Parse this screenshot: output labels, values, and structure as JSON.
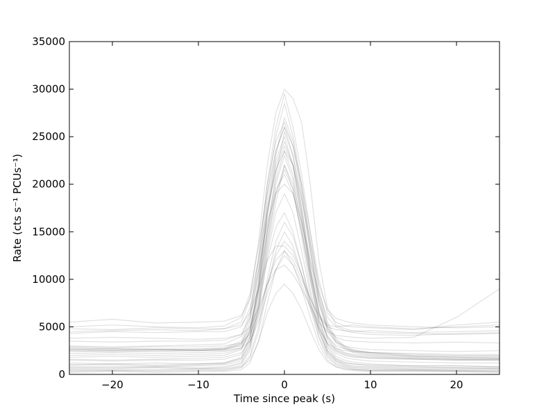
{
  "chart_data": {
    "type": "line",
    "title": "",
    "xlabel": "Time since peak (s)",
    "ylabel": "Rate (cts s⁻¹ PCUs⁻¹)",
    "xlim": [
      -25,
      25
    ],
    "ylim": [
      0,
      35000
    ],
    "xticks": [
      -20,
      -10,
      0,
      10,
      20
    ],
    "xtick_labels": [
      "−20",
      "−10",
      "0",
      "10",
      "20"
    ],
    "yticks": [
      0,
      5000,
      10000,
      15000,
      20000,
      25000,
      30000,
      35000
    ],
    "ytick_labels": [
      "0",
      "5000",
      "10000",
      "15000",
      "20000",
      "25000",
      "30000",
      "35000"
    ],
    "grid": false,
    "legend": "none",
    "line_color": "#000000",
    "line_alpha": 0.12,
    "description": "Overlaid light-curve profiles aligned at their peak (time 0).",
    "x": [
      -25,
      -20,
      -15,
      -10,
      -7,
      -5,
      -4,
      -3,
      -2,
      -1,
      0,
      1,
      2,
      3,
      4,
      5,
      6,
      7,
      8,
      10,
      15,
      20,
      25
    ],
    "series": [
      {
        "values": [
          2700,
          2600,
          2600,
          2700,
          2800,
          3500,
          6000,
          12000,
          20000,
          26000,
          29500,
          26000,
          21000,
          15000,
          9000,
          5500,
          3800,
          3000,
          2600,
          2300,
          2000,
          1900,
          1900
        ]
      },
      {
        "values": [
          2500,
          2400,
          2500,
          2500,
          2600,
          3200,
          5500,
          11000,
          19000,
          25000,
          28500,
          25000,
          20000,
          14000,
          8500,
          5200,
          3600,
          2900,
          2500,
          2200,
          1900,
          1800,
          1800
        ]
      },
      {
        "values": [
          2800,
          2700,
          2700,
          2600,
          2700,
          3300,
          5000,
          9500,
          17000,
          23000,
          27000,
          24500,
          19500,
          13500,
          8000,
          5000,
          3500,
          2800,
          2400,
          2100,
          1900,
          1800,
          1700
        ]
      },
      {
        "values": [
          2600,
          2500,
          2600,
          2500,
          2600,
          3000,
          4500,
          8500,
          15000,
          21000,
          25500,
          23000,
          18500,
          13000,
          8000,
          4800,
          3300,
          2700,
          2300,
          2000,
          1800,
          1700,
          1700
        ]
      },
      {
        "values": [
          4500,
          4600,
          4700,
          4600,
          4800,
          5500,
          8000,
          14000,
          22000,
          27500,
          30000,
          29000,
          26500,
          20000,
          12000,
          7000,
          5200,
          4800,
          4600,
          4400,
          4300,
          4200,
          4300
        ]
      },
      {
        "values": [
          4300,
          4500,
          4400,
          4500,
          4500,
          5000,
          7000,
          11000,
          16000,
          19000,
          20000,
          19000,
          16000,
          12000,
          8500,
          6000,
          5000,
          4600,
          4400,
          4200,
          4100,
          4300,
          4400
        ]
      },
      {
        "values": [
          5000,
          5200,
          5000,
          4900,
          5100,
          6000,
          8500,
          13500,
          19000,
          23500,
          26000,
          24000,
          20000,
          15000,
          10000,
          6500,
          5500,
          5100,
          5000,
          4900,
          4700,
          5200,
          5500
        ]
      },
      {
        "values": [
          4800,
          4700,
          4900,
          4800,
          4800,
          5200,
          6500,
          9000,
          12000,
          13500,
          13500,
          12500,
          10500,
          8000,
          6000,
          5000,
          4700,
          4600,
          4500,
          4600,
          4400,
          4500,
          4600
        ]
      },
      {
        "values": [
          3000,
          2900,
          3000,
          3100,
          3200,
          4000,
          6500,
          12500,
          20000,
          24500,
          26500,
          24000,
          19000,
          13000,
          7500,
          4500,
          3400,
          3000,
          2800,
          2600,
          2500,
          2400,
          2500
        ]
      },
      {
        "values": [
          2200,
          2300,
          2200,
          2300,
          2400,
          2800,
          4000,
          7500,
          13000,
          18000,
          22000,
          20000,
          16000,
          11000,
          6500,
          4000,
          2800,
          2300,
          2100,
          1900,
          1700,
          1600,
          1600
        ]
      },
      {
        "values": [
          1000,
          1000,
          900,
          1000,
          1100,
          1600,
          3500,
          9000,
          17000,
          22500,
          25000,
          22000,
          16500,
          10500,
          5500,
          2800,
          1700,
          1300,
          1100,
          900,
          800,
          700,
          700
        ]
      },
      {
        "values": [
          800,
          800,
          800,
          900,
          1000,
          1400,
          3000,
          7500,
          14500,
          20000,
          23000,
          20500,
          15500,
          10000,
          5200,
          2500,
          1500,
          1100,
          900,
          800,
          700,
          700,
          600
        ]
      },
      {
        "values": [
          1200,
          1100,
          1200,
          1100,
          1200,
          1800,
          4000,
          10000,
          18000,
          23500,
          26000,
          23000,
          17500,
          11000,
          6000,
          3000,
          1900,
          1500,
          1300,
          1100,
          900,
          900,
          800
        ]
      },
      {
        "values": [
          600,
          600,
          700,
          600,
          700,
          1100,
          2500,
          6500,
          12500,
          17000,
          19000,
          17000,
          13000,
          8500,
          4500,
          2200,
          1300,
          900,
          700,
          600,
          500,
          500,
          500
        ]
      },
      {
        "values": [
          500,
          500,
          500,
          600,
          600,
          900,
          2000,
          5000,
          10000,
          14000,
          16000,
          14500,
          11500,
          7500,
          4000,
          2000,
          1100,
          800,
          600,
          500,
          500,
          400,
          400
        ]
      },
      {
        "values": [
          1500,
          1400,
          1500,
          1500,
          1600,
          2100,
          3800,
          8000,
          14000,
          19000,
          21500,
          19500,
          15000,
          10000,
          5800,
          3200,
          2200,
          1800,
          1600,
          1400,
          1300,
          1200,
          1200
        ]
      },
      {
        "values": [
          200,
          300,
          200,
          300,
          300,
          500,
          1200,
          3500,
          7500,
          11000,
          13000,
          11500,
          9000,
          6000,
          3200,
          1500,
          800,
          500,
          400,
          300,
          300,
          300,
          200
        ]
      },
      {
        "values": [
          1800,
          1900,
          1800,
          1900,
          2000,
          2600,
          4500,
          9000,
          15500,
          20500,
          23500,
          21000,
          16500,
          11000,
          6500,
          3600,
          2500,
          2100,
          1900,
          1700,
          1600,
          1500,
          1500
        ]
      },
      {
        "values": [
          3500,
          3400,
          3500,
          3500,
          3600,
          4200,
          6000,
          10500,
          17000,
          21500,
          24000,
          22000,
          17500,
          12000,
          7500,
          4800,
          3900,
          3600,
          3500,
          3400,
          3300,
          3400,
          3300
        ]
      },
      {
        "values": [
          2400,
          2500,
          2400,
          2500,
          2500,
          2800,
          3500,
          5500,
          8500,
          11000,
          12500,
          11500,
          9500,
          7000,
          4800,
          3300,
          2700,
          2500,
          2400,
          2300,
          2200,
          2100,
          2100
        ]
      },
      {
        "values": [
          3800,
          3900,
          3800,
          3700,
          3800,
          4200,
          5000,
          7000,
          9500,
          11000,
          11500,
          10500,
          9000,
          7200,
          5500,
          4500,
          4100,
          4000,
          3900,
          3800,
          3900,
          6000,
          9000
        ]
      },
      {
        "values": [
          1000,
          1100,
          1000,
          1100,
          1200,
          1700,
          3200,
          7000,
          12000,
          15500,
          17000,
          15000,
          11500,
          7800,
          4500,
          2500,
          1600,
          1200,
          1100,
          1000,
          900,
          900,
          800
        ]
      },
      {
        "values": [
          2900,
          2800,
          2900,
          2900,
          3000,
          3300,
          4200,
          6500,
          9500,
          12000,
          13000,
          12000,
          10000,
          8000,
          6200,
          5200,
          5000,
          5100,
          5200,
          5000,
          4800,
          5000,
          5200
        ]
      },
      {
        "values": [
          300,
          400,
          300,
          400,
          400,
          700,
          1800,
          4500,
          9000,
          13000,
          15000,
          13500,
          10500,
          7000,
          3800,
          1800,
          1000,
          700,
          500,
          400,
          400,
          300,
          300
        ]
      },
      {
        "values": [
          2600,
          2700,
          2600,
          2600,
          2700,
          3100,
          4800,
          9000,
          15000,
          19500,
          21000,
          19000,
          15000,
          10500,
          6500,
          4000,
          3000,
          2700,
          2500,
          2300,
          2100,
          2000,
          2000
        ]
      },
      {
        "values": [
          700,
          700,
          800,
          700,
          800,
          1200,
          2800,
          7000,
          13500,
          19000,
          22000,
          19500,
          14500,
          9000,
          4800,
          2300,
          1400,
          1000,
          800,
          700,
          600,
          600,
          600
        ]
      },
      {
        "values": [
          1600,
          1500,
          1600,
          1700,
          1800,
          2300,
          3500,
          6000,
          9500,
          12500,
          14000,
          13000,
          10500,
          7500,
          5000,
          3200,
          2400,
          2000,
          1800,
          1700,
          1600,
          1500,
          1500
        ]
      },
      {
        "values": [
          2000,
          2100,
          2000,
          2100,
          2200,
          2700,
          4600,
          9500,
          16500,
          22000,
          24500,
          22000,
          17000,
          11500,
          6800,
          3800,
          2600,
          2200,
          2000,
          1800,
          1700,
          1600,
          1600
        ]
      },
      {
        "values": [
          400,
          400,
          400,
          500,
          500,
          800,
          1500,
          3500,
          6500,
          8500,
          9500,
          8500,
          6800,
          4600,
          2600,
          1300,
          800,
          600,
          500,
          400,
          400,
          400,
          300
        ]
      },
      {
        "values": [
          5500,
          5800,
          5400,
          5500,
          5600,
          6200,
          8000,
          12000,
          17500,
          21500,
          23500,
          22000,
          18500,
          14000,
          9500,
          6800,
          5900,
          5600,
          5400,
          5200,
          5000,
          4900,
          5000
        ]
      }
    ]
  }
}
